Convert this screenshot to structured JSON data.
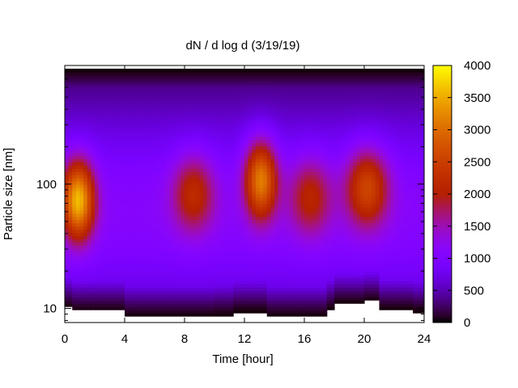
{
  "chart_data": {
    "type": "heatmap",
    "title": "dN / d log d (3/19/19)",
    "xlabel": "Time [hour]",
    "ylabel": "Particle size [nm]",
    "xlim": [
      0,
      24
    ],
    "ylim": [
      7.7,
      900
    ],
    "y_scale": "log",
    "x_ticks": [
      0,
      4,
      8,
      12,
      16,
      20,
      24
    ],
    "x_tick_labels": [
      "0",
      "4",
      "8",
      "12",
      "16",
      "20",
      "24"
    ],
    "y_ticks": [
      10,
      100
    ],
    "y_tick_labels": [
      "10",
      "100"
    ],
    "colorbar": {
      "min": 0,
      "max": 4000,
      "ticks": [
        0,
        500,
        1000,
        1500,
        2000,
        2500,
        3000,
        3500,
        4000
      ],
      "tick_labels": [
        "0",
        "500",
        "1000",
        "1500",
        "2000",
        "2500",
        "3000",
        "3500",
        "4000"
      ],
      "colormap": "gnuplot-pm3d"
    },
    "concentration_peaks": [
      {
        "time_hour": 0.9,
        "size_nm": 75,
        "value": 3300
      },
      {
        "time_hour": 13.1,
        "size_nm": 110,
        "value": 2900
      },
      {
        "time_hour": 20.2,
        "size_nm": 95,
        "value": 2300
      },
      {
        "time_hour": 8.6,
        "size_nm": 85,
        "value": 1900
      },
      {
        "time_hour": 16.4,
        "size_nm": 80,
        "value": 1800
      }
    ],
    "background_level": 1100,
    "size_upper_nm": 850,
    "data_floor_nm": [
      {
        "time_hour": 0,
        "size_nm": 10.2
      },
      {
        "time_hour": 0.5,
        "size_nm": 9.5
      },
      {
        "time_hour": 4,
        "size_nm": 8.6
      },
      {
        "time_hour": 8,
        "size_nm": 8.6
      },
      {
        "time_hour": 10,
        "size_nm": 8.8
      },
      {
        "time_hour": 11.2,
        "size_nm": 9.4
      },
      {
        "time_hour": 13.5,
        "size_nm": 8.6
      },
      {
        "time_hour": 17.5,
        "size_nm": 9.8
      },
      {
        "time_hour": 18,
        "size_nm": 11
      },
      {
        "time_hour": 20,
        "size_nm": 11.5
      },
      {
        "time_hour": 21,
        "size_nm": 9.8
      },
      {
        "time_hour": 23.3,
        "size_nm": 9.4
      },
      {
        "time_hour": 24,
        "size_nm": 9.4
      }
    ]
  }
}
